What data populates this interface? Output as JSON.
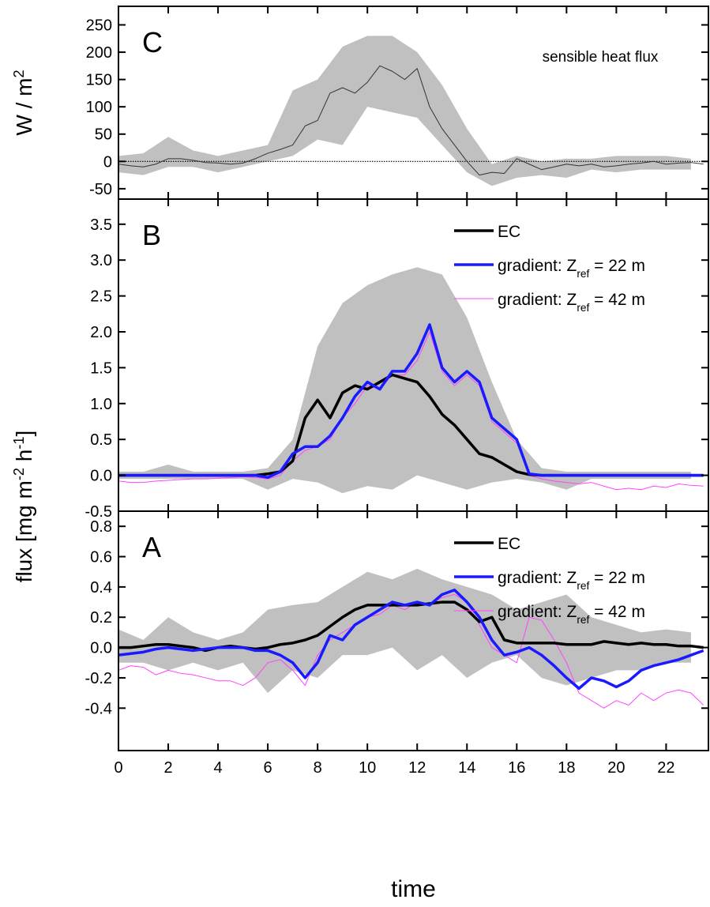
{
  "chart_data": [
    {
      "type": "line",
      "panel": "C",
      "annotation": "sensible heat flux",
      "zero_line": true,
      "ylabel": [
        {
          "text": "W / m"
        },
        {
          "text": "2",
          "sup": true
        }
      ],
      "xlim": [
        0,
        23.7
      ],
      "xticks": [
        0,
        2,
        4,
        6,
        8,
        10,
        12,
        14,
        16,
        18,
        20,
        22
      ],
      "ylim": [
        -69,
        284
      ],
      "yticks": [
        -50,
        0,
        50,
        100,
        150,
        200,
        250
      ],
      "x": [
        0,
        0.5,
        1,
        1.5,
        2,
        2.5,
        3,
        3.5,
        4,
        4.5,
        5,
        5.5,
        6,
        6.5,
        7,
        7.5,
        8,
        8.5,
        9,
        9.5,
        10,
        10.5,
        11,
        11.5,
        12,
        12.5,
        13,
        13.5,
        14,
        14.5,
        15,
        15.5,
        16,
        16.5,
        17,
        17.5,
        18,
        18.5,
        19,
        19.5,
        20,
        20.5,
        21,
        21.5,
        22,
        22.5,
        23,
        23.5
      ],
      "band": {
        "color": "#c0c0c0",
        "x": [
          0,
          1,
          2,
          3,
          4,
          5,
          6,
          7,
          8,
          9,
          10,
          11,
          12,
          13,
          14,
          15,
          16,
          17,
          18,
          19,
          20,
          21,
          22,
          23
        ],
        "upper": [
          10,
          15,
          45,
          20,
          10,
          20,
          30,
          130,
          150,
          210,
          230,
          230,
          200,
          140,
          60,
          -5,
          10,
          0,
          5,
          5,
          10,
          10,
          10,
          5
        ],
        "lower": [
          -20,
          -25,
          -10,
          -10,
          -20,
          -10,
          0,
          10,
          40,
          30,
          100,
          90,
          80,
          30,
          -20,
          -45,
          -30,
          -25,
          -30,
          -15,
          -20,
          -15,
          -15,
          -15
        ]
      },
      "series": [
        {
          "color": "#333333",
          "width": 1,
          "values": [
            -5,
            -8,
            -10,
            -5,
            5,
            5,
            2,
            -2,
            -3,
            -5,
            -3,
            5,
            15,
            22,
            30,
            65,
            75,
            125,
            135,
            125,
            145,
            175,
            165,
            150,
            170,
            100,
            60,
            30,
            0,
            -25,
            -20,
            -22,
            5,
            -5,
            -15,
            -10,
            -5,
            -8,
            -5,
            -10,
            -8,
            -5,
            -3,
            0,
            -5,
            -3,
            -2,
            -5
          ]
        }
      ]
    },
    {
      "type": "line",
      "panel": "B",
      "legend": "upper right",
      "ylabel": [
        {
          "text": "flux [mg m"
        },
        {
          "text": "-2",
          "sup": true
        },
        {
          "text": " h"
        },
        {
          "text": "-1",
          "sup": true
        },
        {
          "text": "]"
        }
      ],
      "xlim": [
        0,
        23.7
      ],
      "xticks": [
        0,
        2,
        4,
        6,
        8,
        10,
        12,
        14,
        16,
        18,
        20,
        22
      ],
      "ylim": [
        -0.5,
        3.85
      ],
      "yticks": [
        -0.5,
        {
          "value": 0,
          "label": "0.0"
        },
        0.5,
        {
          "value": 1,
          "label": "1.0"
        },
        1.5,
        {
          "value": 2,
          "label": "2.0"
        },
        2.5,
        {
          "value": 3,
          "label": "3.0"
        },
        3.5
      ],
      "x": [
        0,
        0.5,
        1,
        1.5,
        2,
        2.5,
        3,
        3.5,
        4,
        4.5,
        5,
        5.5,
        6,
        6.5,
        7,
        7.5,
        8,
        8.5,
        9,
        9.5,
        10,
        10.5,
        11,
        11.5,
        12,
        12.5,
        13,
        13.5,
        14,
        14.5,
        15,
        15.5,
        16,
        16.5,
        17,
        17.5,
        18,
        18.5,
        19,
        19.5,
        20,
        20.5,
        21,
        21.5,
        22,
        22.5,
        23,
        23.5
      ],
      "band": {
        "color": "#c0c0c0",
        "x": [
          0,
          1,
          2,
          3,
          4,
          5,
          6,
          7,
          8,
          9,
          10,
          11,
          12,
          13,
          14,
          15,
          16,
          17,
          18,
          19,
          20,
          21,
          22,
          23
        ],
        "upper": [
          0.05,
          0.05,
          0.15,
          0.05,
          0.05,
          0.05,
          0.1,
          0.5,
          1.8,
          2.4,
          2.65,
          2.8,
          2.9,
          2.8,
          2.2,
          1.3,
          0.5,
          0.1,
          0.05,
          0.05,
          0.05,
          0.05,
          0.05,
          0.05
        ],
        "lower": [
          -0.05,
          -0.05,
          -0.05,
          -0.05,
          -0.05,
          -0.05,
          -0.2,
          -0.05,
          -0.1,
          -0.25,
          -0.15,
          -0.2,
          0,
          -0.1,
          -0.2,
          -0.1,
          -0.05,
          -0.1,
          -0.2,
          -0.05,
          -0.05,
          -0.05,
          -0.05,
          -0.05
        ]
      },
      "series": [
        {
          "name": [
            {
              "text": "gradient: Z"
            },
            {
              "text": "ref",
              "sub": true
            },
            {
              "text": " = 42 m"
            }
          ],
          "color": "#ff44ff",
          "width": 1,
          "values": [
            -0.08,
            -0.1,
            -0.1,
            -0.08,
            -0.07,
            -0.06,
            -0.05,
            -0.05,
            -0.04,
            -0.03,
            -0.02,
            -0.03,
            -0.05,
            0,
            0.2,
            0.35,
            0.4,
            0.5,
            0.8,
            1.0,
            1.25,
            1.2,
            1.4,
            1.4,
            1.6,
            2.0,
            1.45,
            1.25,
            1.4,
            1.25,
            0.75,
            0.6,
            0.45,
            0,
            -0.05,
            -0.08,
            -0.1,
            -0.12,
            -0.1,
            -0.15,
            -0.2,
            -0.18,
            -0.2,
            -0.15,
            -0.17,
            -0.12,
            -0.14,
            -0.15
          ]
        },
        {
          "name": [
            {
              "text": "EC"
            }
          ],
          "color": "#000000",
          "width": 3.5,
          "values": [
            0,
            0,
            0,
            0,
            0,
            0,
            0,
            0,
            0,
            0,
            0,
            0,
            0.02,
            0.05,
            0.2,
            0.8,
            1.05,
            0.8,
            1.15,
            1.25,
            1.2,
            1.3,
            1.4,
            1.35,
            1.3,
            1.1,
            0.85,
            0.7,
            0.5,
            0.3,
            0.25,
            0.15,
            0.05,
            0.01,
            0,
            0,
            0,
            0,
            0,
            0,
            0,
            0,
            0,
            0,
            0,
            0,
            0,
            0
          ]
        },
        {
          "name": [
            {
              "text": "gradient: Z"
            },
            {
              "text": "ref",
              "sub": true
            },
            {
              "text": " = 22 m"
            }
          ],
          "color": "#1a1aff",
          "width": 3.5,
          "values": [
            0,
            0,
            0,
            0,
            0,
            0,
            0,
            0,
            0,
            0,
            0,
            0,
            -0.03,
            0.05,
            0.3,
            0.4,
            0.4,
            0.55,
            0.8,
            1.1,
            1.3,
            1.2,
            1.45,
            1.45,
            1.7,
            2.1,
            1.5,
            1.3,
            1.45,
            1.3,
            0.8,
            0.65,
            0.5,
            0.02,
            0,
            0,
            0,
            0,
            0,
            0,
            0,
            0,
            0,
            0,
            0,
            0,
            0,
            0
          ]
        }
      ]
    },
    {
      "type": "line",
      "panel": "A",
      "legend": "upper right",
      "xlabel": "time",
      "xtick_labels": true,
      "xlim": [
        0,
        23.7
      ],
      "xticks": [
        0,
        2,
        4,
        6,
        8,
        10,
        12,
        14,
        16,
        18,
        20,
        22
      ],
      "ylim": [
        -0.68,
        0.9
      ],
      "yticks": [
        -0.4,
        -0.2,
        {
          "value": 0,
          "label": "0.0"
        },
        0.2,
        0.4,
        0.6,
        0.8
      ],
      "x": [
        0,
        0.5,
        1,
        1.5,
        2,
        2.5,
        3,
        3.5,
        4,
        4.5,
        5,
        5.5,
        6,
        6.5,
        7,
        7.5,
        8,
        8.5,
        9,
        9.5,
        10,
        10.5,
        11,
        11.5,
        12,
        12.5,
        13,
        13.5,
        14,
        14.5,
        15,
        15.5,
        16,
        16.5,
        17,
        17.5,
        18,
        18.5,
        19,
        19.5,
        20,
        20.5,
        21,
        21.5,
        22,
        22.5,
        23,
        23.5
      ],
      "band": {
        "color": "#c0c0c0",
        "x": [
          0,
          1,
          2,
          3,
          4,
          5,
          6,
          7,
          8,
          9,
          10,
          11,
          12,
          13,
          14,
          15,
          16,
          17,
          18,
          19,
          20,
          21,
          22,
          23
        ],
        "upper": [
          0.12,
          0.05,
          0.2,
          0.1,
          0.05,
          0.1,
          0.25,
          0.28,
          0.3,
          0.4,
          0.5,
          0.45,
          0.52,
          0.45,
          0.4,
          0.35,
          0.25,
          0.3,
          0.35,
          0.2,
          0.15,
          0.1,
          0.12,
          0.1
        ],
        "lower": [
          -0.1,
          -0.1,
          -0.15,
          -0.1,
          -0.15,
          -0.1,
          -0.3,
          -0.15,
          -0.2,
          -0.05,
          -0.05,
          0,
          -0.15,
          -0.05,
          -0.2,
          -0.1,
          -0.05,
          -0.2,
          -0.25,
          -0.2,
          -0.15,
          -0.15,
          -0.1,
          -0.1
        ]
      },
      "series": [
        {
          "name": [
            {
              "text": "gradient: Z"
            },
            {
              "text": "ref",
              "sub": true
            },
            {
              "text": " = 42 m"
            }
          ],
          "color": "#ff44ff",
          "width": 1,
          "values": [
            -0.15,
            -0.12,
            -0.13,
            -0.18,
            -0.15,
            -0.17,
            -0.18,
            -0.2,
            -0.22,
            -0.22,
            -0.25,
            -0.2,
            -0.1,
            -0.08,
            -0.15,
            -0.25,
            -0.05,
            0.05,
            0.1,
            0.15,
            0.2,
            0.22,
            0.28,
            0.25,
            0.3,
            0.28,
            0.33,
            0.35,
            0.3,
            0.15,
            0,
            -0.05,
            -0.1,
            0.2,
            0.18,
            0.05,
            -0.1,
            -0.3,
            -0.35,
            -0.4,
            -0.35,
            -0.38,
            -0.3,
            -0.35,
            -0.3,
            -0.28,
            -0.3,
            -0.38
          ]
        },
        {
          "name": [
            {
              "text": "EC"
            }
          ],
          "color": "#000000",
          "width": 3.5,
          "values": [
            0,
            0,
            0.01,
            0.02,
            0.02,
            0.01,
            0,
            -0.02,
            0,
            0.01,
            0,
            -0.01,
            0,
            0.02,
            0.03,
            0.05,
            0.08,
            0.14,
            0.2,
            0.25,
            0.28,
            0.28,
            0.28,
            0.28,
            0.28,
            0.29,
            0.3,
            0.3,
            0.25,
            0.17,
            0.2,
            0.05,
            0.03,
            0.03,
            0.03,
            0.03,
            0.02,
            0.02,
            0.02,
            0.04,
            0.03,
            0.02,
            0.03,
            0.02,
            0.02,
            0.01,
            0.01,
            0
          ]
        },
        {
          "name": [
            {
              "text": "gradient: Z"
            },
            {
              "text": "ref",
              "sub": true
            },
            {
              "text": " = 22 m"
            }
          ],
          "color": "#1a1aff",
          "width": 3.5,
          "values": [
            -0.05,
            -0.04,
            -0.03,
            -0.01,
            0,
            -0.01,
            -0.02,
            -0.01,
            0,
            0,
            0,
            -0.02,
            -0.02,
            -0.05,
            -0.1,
            -0.2,
            -0.1,
            0.08,
            0.05,
            0.15,
            0.2,
            0.25,
            0.3,
            0.28,
            0.3,
            0.28,
            0.35,
            0.38,
            0.3,
            0.2,
            0.05,
            -0.05,
            -0.03,
            0,
            -0.05,
            -0.12,
            -0.2,
            -0.27,
            -0.2,
            -0.22,
            -0.26,
            -0.22,
            -0.15,
            -0.12,
            -0.1,
            -0.08,
            -0.05,
            -0.02
          ]
        }
      ]
    }
  ]
}
